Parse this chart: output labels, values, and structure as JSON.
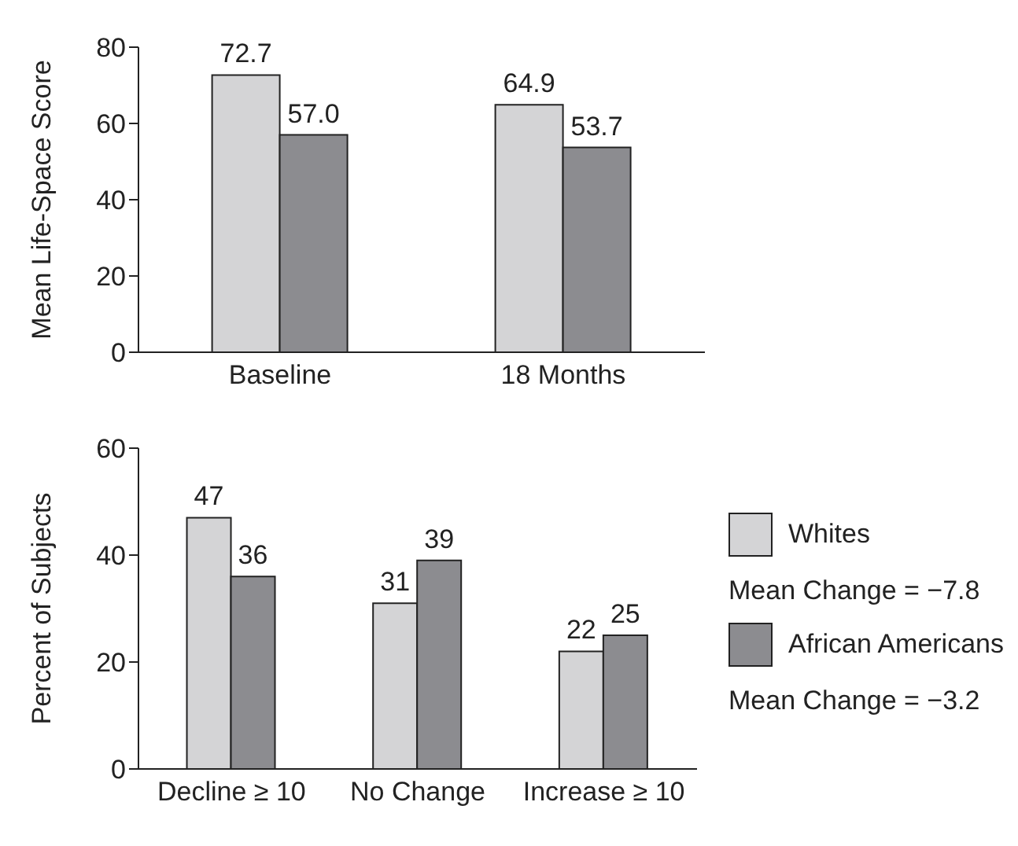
{
  "chart_data": [
    {
      "type": "bar",
      "ylabel": "Mean Life-Space Score",
      "categories": [
        "Baseline",
        "18 Months"
      ],
      "ylim": [
        0,
        80
      ],
      "yticks": [
        0,
        20,
        40,
        60,
        80
      ],
      "grid": false,
      "legend": false,
      "series": [
        {
          "color": "#d4d4d6",
          "values": [
            72.7,
            64.9
          ],
          "value_labels": [
            "72.7",
            "64.9"
          ]
        },
        {
          "color": "#8c8c90",
          "values": [
            57.0,
            53.7
          ],
          "value_labels": [
            "57.0",
            "53.7"
          ]
        }
      ]
    },
    {
      "type": "bar",
      "ylabel": "Percent of Subjects",
      "categories": [
        "Decline ≥ 10",
        "No Change",
        "Increase ≥ 10"
      ],
      "ylim": [
        0,
        60
      ],
      "yticks": [
        0,
        20,
        40,
        60
      ],
      "grid": false,
      "legend": "right",
      "data_labels": true,
      "series": [
        {
          "name": "Whites",
          "color": "#d4d4d6",
          "values": [
            47,
            31,
            22
          ]
        },
        {
          "name": "African Americans",
          "color": "#8c8c90",
          "values": [
            36,
            39,
            25
          ]
        }
      ],
      "annotations": [
        "Mean Change = −7.8",
        "Mean Change = −3.2"
      ]
    }
  ]
}
